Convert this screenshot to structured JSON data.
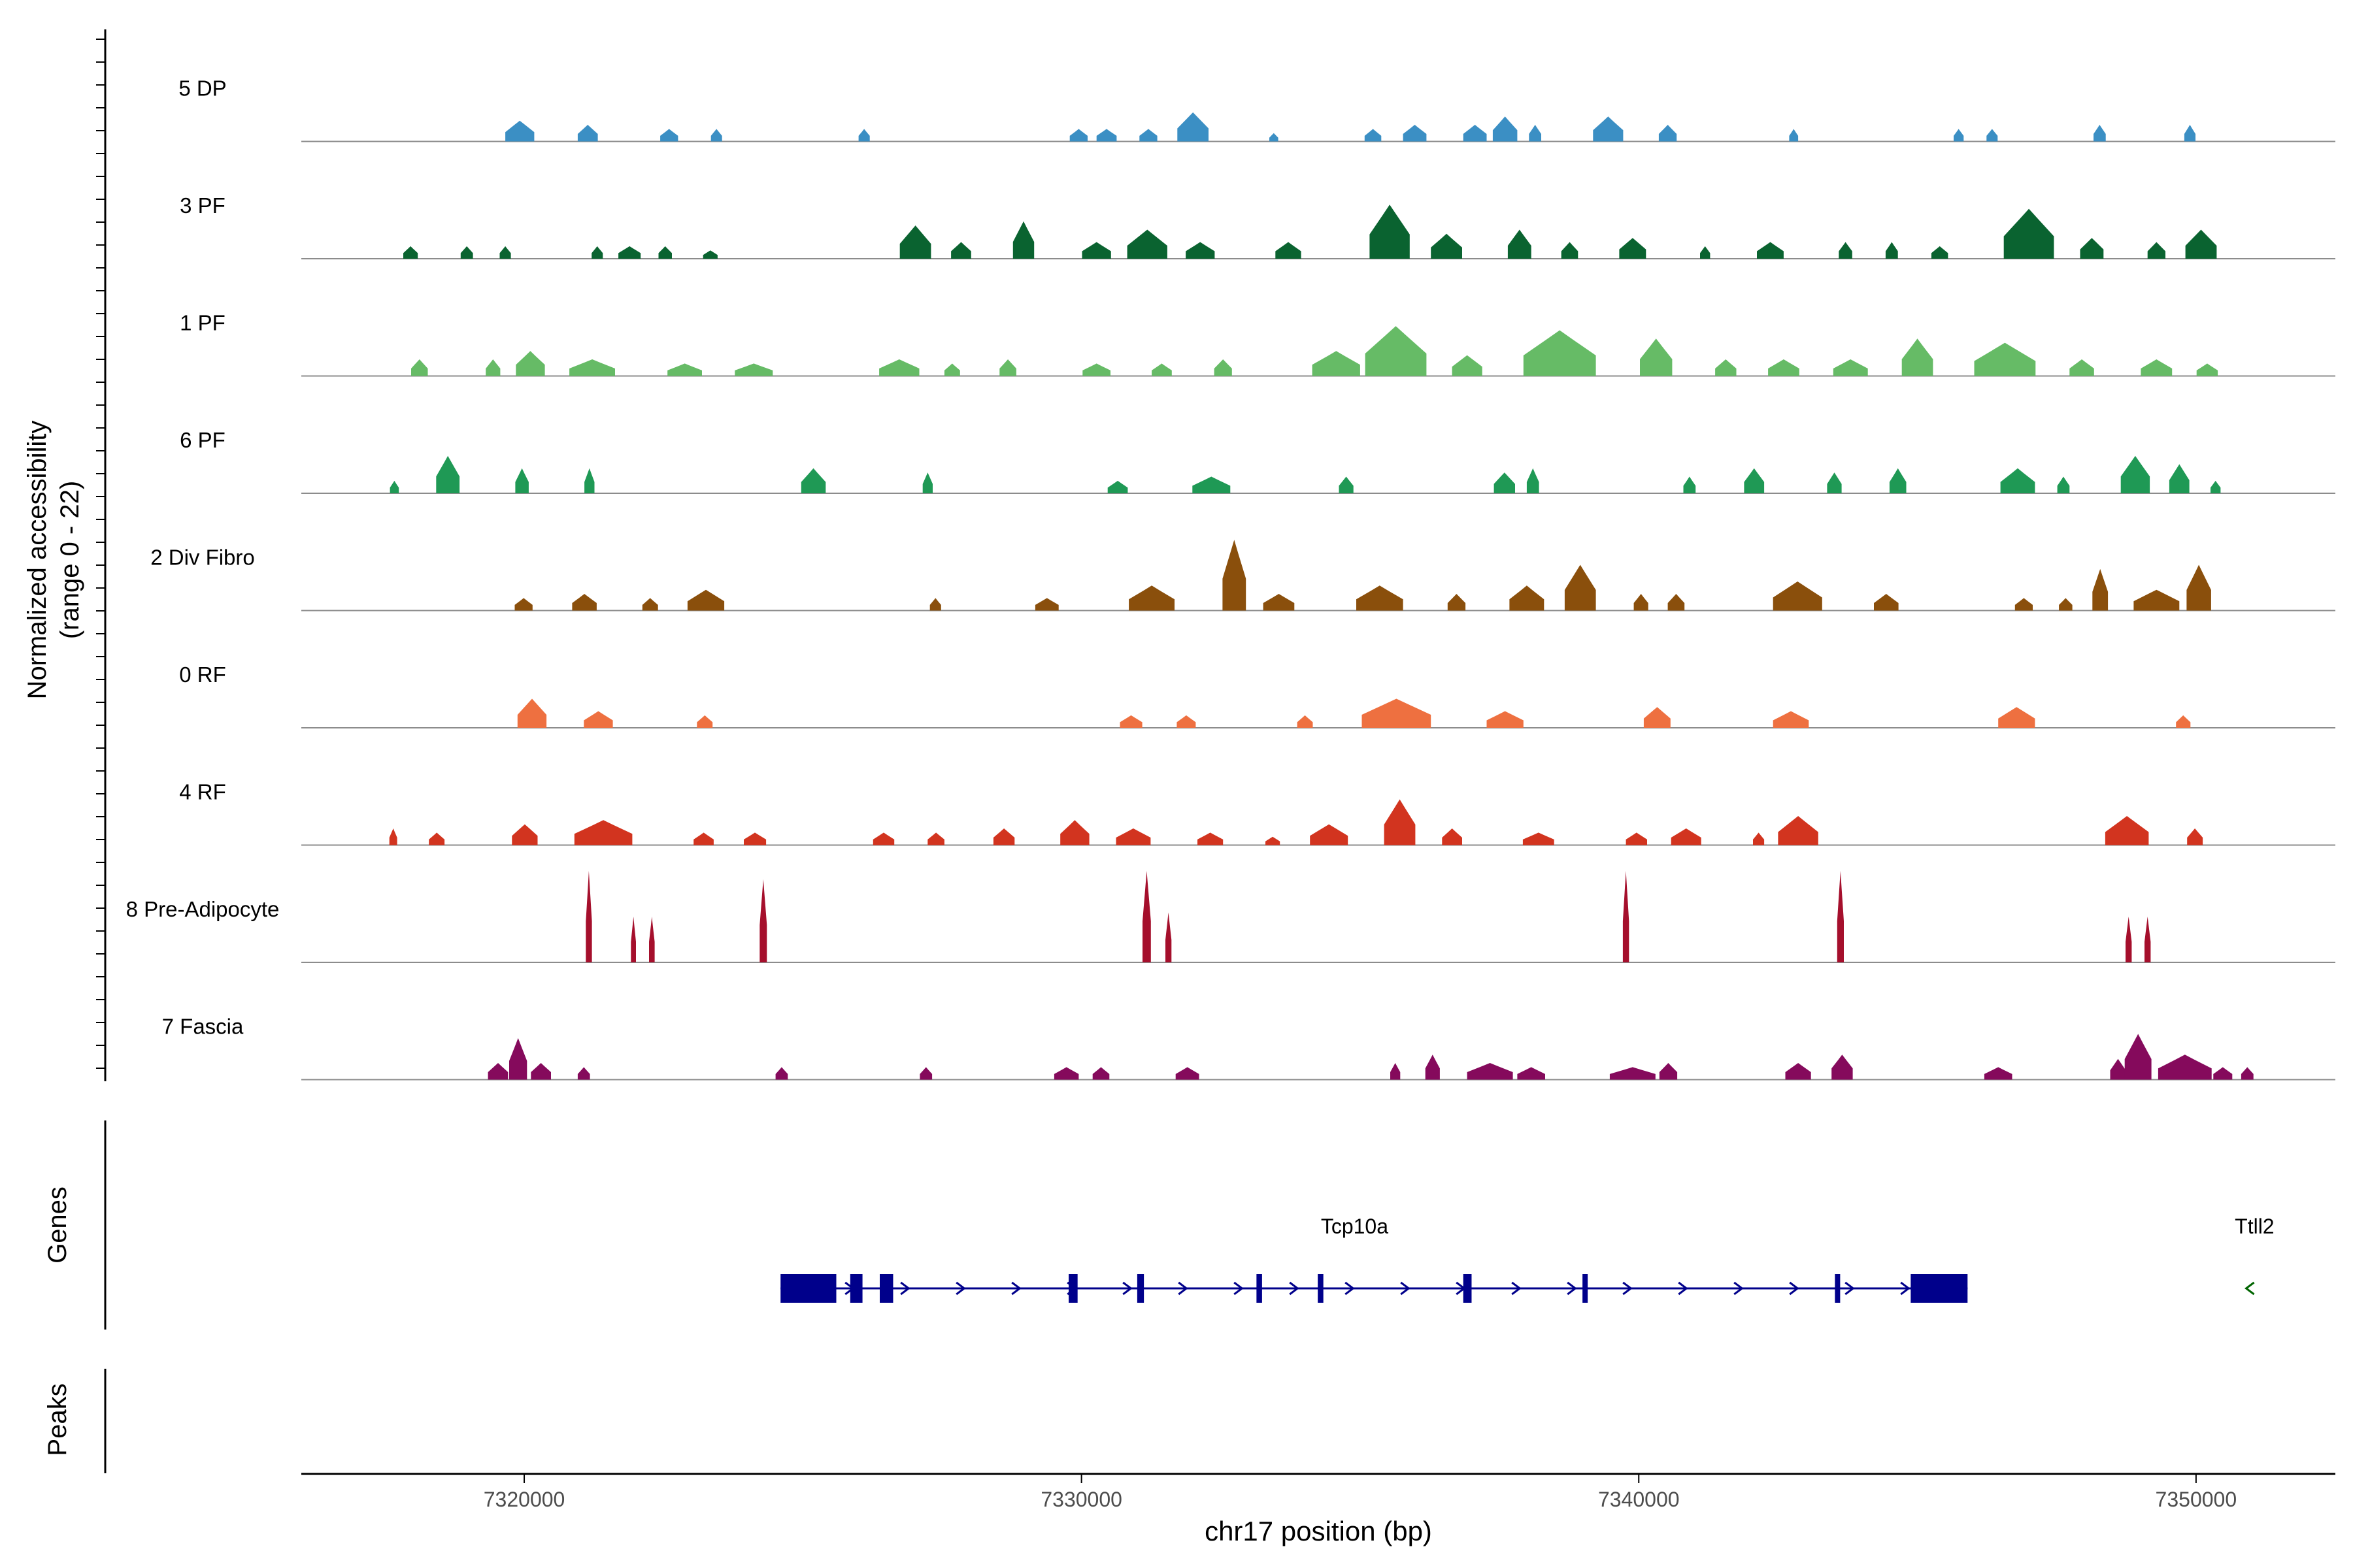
{
  "chart_data": {
    "type": "area",
    "title": "",
    "ylabel_line1": "Normalized accessibility",
    "ylabel_line2": "(range 0 - 22)",
    "ylim": [
      0,
      22
    ],
    "xlabel": "chr17 position (bp)",
    "xlim": [
      7316000,
      7352500
    ],
    "xticks": [
      7320000,
      7330000,
      7340000,
      7350000
    ],
    "xtick_labels": [
      "7320000",
      "7330000",
      "7340000",
      "7350000"
    ],
    "tracks": [
      {
        "name": "5 DP",
        "color": "#3b8fc4",
        "peaks": [
          [
            7319920,
            5,
            520
          ],
          [
            7321140,
            4,
            360
          ],
          [
            7322600,
            3,
            320
          ],
          [
            7323450,
            3,
            200
          ],
          [
            7326100,
            3,
            200
          ],
          [
            7329950,
            3,
            320
          ],
          [
            7330450,
            3,
            360
          ],
          [
            7331200,
            3,
            320
          ],
          [
            7332000,
            7,
            560
          ],
          [
            7333450,
            2,
            160
          ],
          [
            7335230,
            3,
            300
          ],
          [
            7335980,
            4,
            420
          ],
          [
            7337060,
            4,
            420
          ],
          [
            7337600,
            6,
            440
          ],
          [
            7338140,
            4,
            220
          ],
          [
            7339450,
            6,
            540
          ],
          [
            7340520,
            4,
            320
          ],
          [
            7342780,
            3,
            160
          ],
          [
            7345740,
            3,
            180
          ],
          [
            7346340,
            3,
            200
          ],
          [
            7348270,
            4,
            220
          ],
          [
            7349890,
            4,
            200
          ]
        ]
      },
      {
        "name": "3 PF",
        "color": "#0a6330",
        "peaks": [
          [
            7317960,
            3,
            260
          ],
          [
            7318970,
            3,
            220
          ],
          [
            7319660,
            3,
            200
          ],
          [
            7321310,
            3,
            200
          ],
          [
            7321890,
            3,
            400
          ],
          [
            7322530,
            3,
            240
          ],
          [
            7323340,
            2,
            260
          ],
          [
            7327020,
            8,
            560
          ],
          [
            7327840,
            4,
            360
          ],
          [
            7328960,
            9,
            380
          ],
          [
            7330270,
            4,
            520
          ],
          [
            7331180,
            7,
            720
          ],
          [
            7332130,
            4,
            520
          ],
          [
            7333710,
            4,
            460
          ],
          [
            7335530,
            13,
            720
          ],
          [
            7336550,
            6,
            560
          ],
          [
            7337860,
            7,
            420
          ],
          [
            7338760,
            4,
            300
          ],
          [
            7339890,
            5,
            480
          ],
          [
            7341190,
            3,
            180
          ],
          [
            7342360,
            4,
            480
          ],
          [
            7343710,
            4,
            240
          ],
          [
            7344540,
            4,
            220
          ],
          [
            7345400,
            3,
            300
          ],
          [
            7347000,
            12,
            900
          ],
          [
            7348130,
            5,
            420
          ],
          [
            7349290,
            4,
            320
          ],
          [
            7350090,
            7,
            560
          ]
        ]
      },
      {
        "name": "1 PF",
        "color": "#66bb66",
        "peaks": [
          [
            7318120,
            4,
            300
          ],
          [
            7319440,
            4,
            260
          ],
          [
            7320110,
            6,
            520
          ],
          [
            7321220,
            4,
            820
          ],
          [
            7322880,
            3,
            620
          ],
          [
            7324120,
            3,
            680
          ],
          [
            7326730,
            4,
            720
          ],
          [
            7327680,
            3,
            280
          ],
          [
            7328680,
            4,
            300
          ],
          [
            7330270,
            3,
            500
          ],
          [
            7331440,
            3,
            360
          ],
          [
            7332540,
            4,
            320
          ],
          [
            7334570,
            6,
            860
          ],
          [
            7335640,
            12,
            1100
          ],
          [
            7336920,
            5,
            540
          ],
          [
            7338580,
            11,
            1300
          ],
          [
            7340310,
            9,
            580
          ],
          [
            7341560,
            4,
            380
          ],
          [
            7342600,
            4,
            560
          ],
          [
            7343800,
            4,
            620
          ],
          [
            7345000,
            9,
            560
          ],
          [
            7346570,
            8,
            1100
          ],
          [
            7347950,
            4,
            440
          ],
          [
            7349290,
            4,
            560
          ],
          [
            7350200,
            3,
            380
          ]
        ]
      },
      {
        "name": "6 PF",
        "color": "#1f9955",
        "peaks": [
          [
            7317670,
            3,
            160
          ],
          [
            7318630,
            9,
            420
          ],
          [
            7319960,
            6,
            240
          ],
          [
            7321170,
            6,
            180
          ],
          [
            7325190,
            6,
            440
          ],
          [
            7327240,
            5,
            180
          ],
          [
            7330650,
            3,
            360
          ],
          [
            7332330,
            4,
            680
          ],
          [
            7334750,
            4,
            260
          ],
          [
            7337590,
            5,
            380
          ],
          [
            7338100,
            6,
            220
          ],
          [
            7340910,
            4,
            220
          ],
          [
            7342070,
            6,
            360
          ],
          [
            7343510,
            5,
            260
          ],
          [
            7344650,
            6,
            300
          ],
          [
            7346800,
            6,
            620
          ],
          [
            7347620,
            4,
            220
          ],
          [
            7348910,
            9,
            520
          ],
          [
            7349700,
            7,
            360
          ],
          [
            7350350,
            3,
            180
          ]
        ]
      },
      {
        "name": "2 Div Fibro",
        "color": "#8a4f0c",
        "peaks": [
          [
            7319990,
            3,
            320
          ],
          [
            7321080,
            4,
            440
          ],
          [
            7322260,
            3,
            280
          ],
          [
            7323260,
            5,
            660
          ],
          [
            7327380,
            3,
            200
          ],
          [
            7329380,
            3,
            420
          ],
          [
            7331260,
            6,
            820
          ],
          [
            7332740,
            17,
            420
          ],
          [
            7333540,
            4,
            560
          ],
          [
            7335350,
            6,
            840
          ],
          [
            7336730,
            4,
            320
          ],
          [
            7337990,
            6,
            620
          ],
          [
            7338950,
            11,
            560
          ],
          [
            7340040,
            4,
            260
          ],
          [
            7340670,
            4,
            300
          ],
          [
            7342850,
            7,
            880
          ],
          [
            7344440,
            4,
            440
          ],
          [
            7346910,
            3,
            320
          ],
          [
            7347660,
            3,
            240
          ],
          [
            7348280,
            10,
            280
          ],
          [
            7349290,
            5,
            820
          ],
          [
            7350050,
            11,
            440
          ]
        ]
      },
      {
        "name": "0 RF",
        "color": "#ee7040",
        "peaks": [
          [
            7320140,
            7,
            520
          ],
          [
            7321330,
            4,
            520
          ],
          [
            7323240,
            3,
            280
          ],
          [
            7330890,
            3,
            400
          ],
          [
            7331880,
            3,
            340
          ],
          [
            7334010,
            3,
            280
          ],
          [
            7335650,
            7,
            1240
          ],
          [
            7337600,
            4,
            660
          ],
          [
            7340330,
            5,
            480
          ],
          [
            7342730,
            4,
            640
          ],
          [
            7346780,
            5,
            660
          ],
          [
            7349770,
            3,
            260
          ]
        ]
      },
      {
        "name": "4 RF",
        "color": "#d2341f",
        "peaks": [
          [
            7317650,
            4,
            140
          ],
          [
            7318430,
            3,
            280
          ],
          [
            7320010,
            5,
            460
          ],
          [
            7321420,
            6,
            1040
          ],
          [
            7323220,
            3,
            360
          ],
          [
            7324140,
            3,
            400
          ],
          [
            7326450,
            3,
            380
          ],
          [
            7327390,
            3,
            300
          ],
          [
            7328610,
            4,
            380
          ],
          [
            7329880,
            6,
            520
          ],
          [
            7330930,
            4,
            620
          ],
          [
            7332310,
            3,
            460
          ],
          [
            7333430,
            2,
            260
          ],
          [
            7334440,
            5,
            680
          ],
          [
            7335710,
            11,
            560
          ],
          [
            7336650,
            4,
            360
          ],
          [
            7338200,
            3,
            560
          ],
          [
            7339960,
            3,
            380
          ],
          [
            7340850,
            4,
            540
          ],
          [
            7342150,
            3,
            200
          ],
          [
            7342860,
            7,
            720
          ],
          [
            7348760,
            7,
            780
          ],
          [
            7349980,
            4,
            280
          ]
        ]
      },
      {
        "name": "8 Pre-Adipocyte",
        "color": "#a50f2c",
        "peaks": [
          [
            7321160,
            22,
            110
          ],
          [
            7321960,
            11,
            90
          ],
          [
            7322290,
            11,
            100
          ],
          [
            7324290,
            20,
            130
          ],
          [
            7331170,
            22,
            150
          ],
          [
            7331560,
            12,
            110
          ],
          [
            7339770,
            22,
            110
          ],
          [
            7343620,
            22,
            120
          ],
          [
            7348790,
            11,
            110
          ],
          [
            7349130,
            11,
            110
          ]
        ]
      },
      {
        "name": "7 Fascia",
        "color": "#850a5c",
        "peaks": [
          [
            7319530,
            4,
            360
          ],
          [
            7319890,
            10,
            320
          ],
          [
            7320300,
            4,
            360
          ],
          [
            7321070,
            3,
            220
          ],
          [
            7324620,
            3,
            220
          ],
          [
            7327210,
            3,
            220
          ],
          [
            7329730,
            3,
            440
          ],
          [
            7330350,
            3,
            300
          ],
          [
            7331900,
            3,
            420
          ],
          [
            7335630,
            4,
            180
          ],
          [
            7336300,
            6,
            260
          ],
          [
            7337330,
            4,
            820
          ],
          [
            7338070,
            3,
            500
          ],
          [
            7339890,
            3,
            820
          ],
          [
            7340530,
            4,
            320
          ],
          [
            7342860,
            4,
            460
          ],
          [
            7343650,
            6,
            380
          ],
          [
            7346450,
            3,
            500
          ],
          [
            7348600,
            5,
            280
          ],
          [
            7348960,
            11,
            480
          ],
          [
            7349800,
            6,
            960
          ],
          [
            7350480,
            3,
            340
          ],
          [
            7350920,
            3,
            220
          ]
        ]
      }
    ],
    "genes": [
      {
        "name": "Tcp10a",
        "strand": "+",
        "color": "#00008b",
        "label_pos": 7334900,
        "start": 7324600,
        "end": 7345900,
        "exons": [
          [
            7324600,
            7325600
          ],
          [
            7325850,
            7326070
          ],
          [
            7326380,
            7326620
          ],
          [
            7329770,
            7329930
          ],
          [
            7331000,
            7331120
          ],
          [
            7333140,
            7333240
          ],
          [
            7334240,
            7334340
          ],
          [
            7336850,
            7337000
          ],
          [
            7338990,
            7339070
          ],
          [
            7343520,
            7343600
          ],
          [
            7344880,
            7345900
          ]
        ]
      },
      {
        "name": "Ttll2",
        "strand": "-",
        "color": "#006400",
        "label_pos": 7351050,
        "marker_pos": 7350970
      }
    ],
    "panel_labels": {
      "genes": "Genes",
      "peaks": "Peaks"
    }
  }
}
